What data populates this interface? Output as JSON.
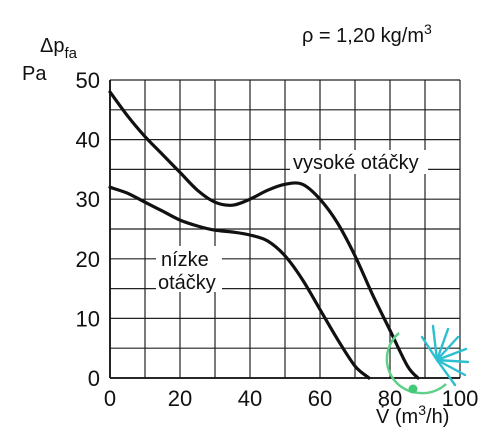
{
  "chart_data": {
    "type": "line",
    "xlabel_prefix": "V̇ (m",
    "xlabel_sup": "3",
    "xlabel_suffix": "/h)",
    "ylabel_main": "Δp",
    "ylabel_sub": "fa",
    "ylabel_unit": "Pa",
    "density_prefix": "ρ = 1,20 kg/m",
    "density_sup": "3",
    "xlim": [
      0,
      100
    ],
    "ylim": [
      0,
      50
    ],
    "xticks": [
      0,
      20,
      40,
      60,
      80,
      100
    ],
    "yticks": [
      0,
      10,
      20,
      30,
      40,
      50
    ],
    "grid": true,
    "series": [
      {
        "name": "vysoké otáčky",
        "x": [
          0,
          5,
          10,
          15,
          20,
          25,
          30,
          35,
          40,
          45,
          50,
          55,
          60,
          65,
          70,
          75,
          80,
          85,
          88
        ],
        "y": [
          48,
          44,
          40.5,
          37.5,
          34.5,
          31.5,
          29.5,
          29,
          30,
          31.5,
          32.5,
          32.5,
          30,
          26,
          20.5,
          14,
          8,
          2,
          0
        ]
      },
      {
        "name": "nízke otáčky",
        "label_line1": "nízke",
        "label_line2": "otáčky",
        "x": [
          0,
          5,
          10,
          15,
          20,
          25,
          30,
          35,
          40,
          45,
          50,
          55,
          60,
          65,
          70,
          74
        ],
        "y": [
          32,
          31,
          29.5,
          28,
          26.5,
          25.5,
          24.8,
          24.5,
          24,
          23,
          20.5,
          16.5,
          11.5,
          6.5,
          2,
          0
        ]
      }
    ]
  }
}
